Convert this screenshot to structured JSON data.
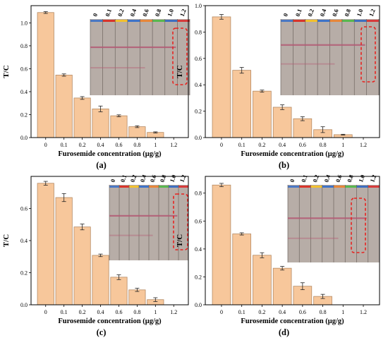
{
  "colors": {
    "bar_fill": "#f7c79b",
    "bar_stroke": "#b58a63",
    "strip_bg": "#b7ada7",
    "line_color": "#b35a74",
    "dashed_box": "#e8221f",
    "strip_tops": [
      "#4a78c4",
      "#d9342b",
      "#f2c12e",
      "#3e73c9",
      "#e8873a",
      "#58b84f",
      "#3e6fc0",
      "#d63b3b",
      "#8a8a8a"
    ]
  },
  "chart_data": [
    {
      "type": "bar",
      "panel": "(a)",
      "categories": [
        "0",
        "0.1",
        "0.2",
        "0.4",
        "0.6",
        "0.8",
        "1",
        "1.2"
      ],
      "values": [
        1.09,
        0.545,
        0.345,
        0.25,
        0.19,
        0.095,
        0.045,
        0
      ],
      "errors": [
        0.008,
        0.01,
        0.012,
        0.025,
        0.008,
        0.008,
        0.005,
        0
      ],
      "ylabel": "T/C",
      "xlabel": "Furosemide concentration (μg/g)",
      "ylim": [
        0,
        1.15
      ],
      "yticks": [
        0.0,
        0.2,
        0.4,
        0.6,
        0.8,
        1.0
      ],
      "ytick_labels": [
        "0.0",
        "0.2",
        "0.4",
        "0.6",
        "0.8",
        "1.0"
      ],
      "strip_labels": [
        "0",
        "0.1",
        "0.2",
        "0.4",
        "0.6",
        "0.8",
        "1.0",
        "1.2"
      ]
    },
    {
      "type": "bar",
      "panel": "(b)",
      "categories": [
        "0",
        "0.1",
        "0.2",
        "0.4",
        "0.6",
        "0.8",
        "1",
        "1.2"
      ],
      "values": [
        0.915,
        0.51,
        0.352,
        0.23,
        0.143,
        0.06,
        0.022,
        0
      ],
      "errors": [
        0.018,
        0.022,
        0.008,
        0.018,
        0.015,
        0.022,
        0.003,
        0
      ],
      "ylabel": "T/C",
      "xlabel": "Furosemide concentration (μg/g)",
      "ylim": [
        0,
        1.0
      ],
      "yticks": [
        0.0,
        0.2,
        0.4,
        0.6,
        0.8,
        1.0
      ],
      "ytick_labels": [
        "0.0",
        "0.2",
        "0.4",
        "0.6",
        "0.8",
        "1.0"
      ],
      "strip_labels": [
        "0",
        "0.1",
        "0.2",
        "0.4",
        "0.6",
        "0.8",
        "1.0",
        "1.2"
      ]
    },
    {
      "type": "bar",
      "panel": "(c)",
      "categories": [
        "0",
        "0.1",
        "0.2",
        "0.4",
        "0.6",
        "0.8",
        "1",
        "1.2"
      ],
      "values": [
        0.757,
        0.668,
        0.485,
        0.308,
        0.172,
        0.093,
        0.032,
        0
      ],
      "errors": [
        0.012,
        0.025,
        0.018,
        0.008,
        0.015,
        0.01,
        0.012,
        0
      ],
      "ylabel": "T/C",
      "xlabel": "Furosemide concentration (μg/g)",
      "ylim": [
        0,
        0.8
      ],
      "yticks": [
        0.0,
        0.2,
        0.4,
        0.6
      ],
      "ytick_labels": [
        "0.0",
        "0.2",
        "0.4",
        "0.6"
      ],
      "strip_labels": [
        "0",
        "0.1",
        "0.2",
        "0.4",
        "0.6",
        "0.8",
        "1.0",
        "1.2"
      ]
    },
    {
      "type": "bar",
      "panel": "(d)",
      "categories": [
        "0",
        "0.1",
        "0.2",
        "0.4",
        "0.6",
        "0.8",
        "1",
        "1.2"
      ],
      "values": [
        0.858,
        0.508,
        0.355,
        0.262,
        0.133,
        0.06,
        0,
        0
      ],
      "errors": [
        0.012,
        0.008,
        0.018,
        0.013,
        0.025,
        0.015,
        0,
        0
      ],
      "ylabel": "T/C",
      "xlabel": "Furosemide concentration (μg/g)",
      "ylim": [
        0,
        0.92
      ],
      "yticks": [
        0.0,
        0.2,
        0.4,
        0.6,
        0.8
      ],
      "ytick_labels": [
        "0.0",
        "0.2",
        "0.4",
        "0.6",
        "0.8"
      ],
      "strip_labels": [
        "0",
        "0.1",
        "0.2",
        "0.4",
        "0.6",
        "0.8",
        "1.0",
        "1.2"
      ]
    }
  ]
}
